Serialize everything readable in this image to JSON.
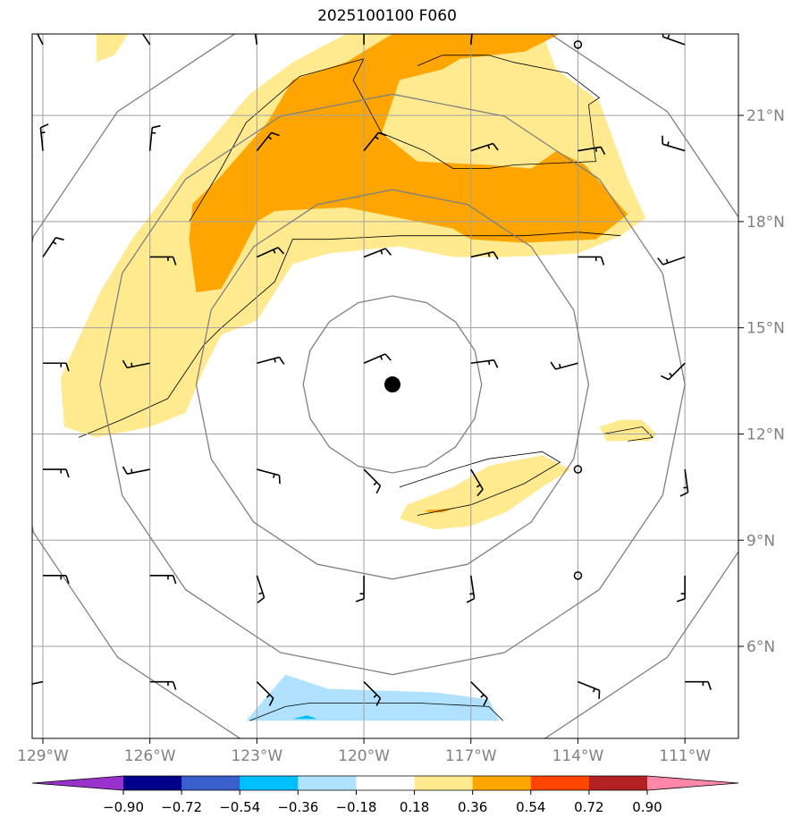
{
  "chart_data": {
    "type": "heatmap",
    "title": "2025100100 F060",
    "map": {
      "lon_range": [
        -129.3,
        -109.5
      ],
      "lat_range": [
        3.4,
        23.3
      ],
      "lon_ticks": [
        -129,
        -126,
        -123,
        -120,
        -117,
        -114,
        -111
      ],
      "lon_tick_labels": [
        "129°W",
        "126°W",
        "123°W",
        "120°W",
        "117°W",
        "114°W",
        "111°W"
      ],
      "lat_ticks": [
        6,
        9,
        12,
        15,
        18,
        21
      ],
      "lat_tick_labels": [
        "6°N",
        "9°N",
        "12°N",
        "15°N",
        "18°N",
        "21°N"
      ],
      "gridlines": true
    },
    "storm_center": {
      "lon": -119.2,
      "lat": 13.4
    },
    "range_rings_deg": [
      2.5,
      5.5,
      8.2,
      10.9
    ],
    "colorbar": {
      "levels": [
        -0.9,
        -0.72,
        -0.54,
        -0.36,
        -0.18,
        0.18,
        0.36,
        0.54,
        0.72,
        0.9
      ],
      "tick_labels": [
        "−0.90",
        "−0.72",
        "−0.54",
        "−0.36",
        "−0.18",
        "0.18",
        "0.36",
        "0.54",
        "0.72",
        "0.90"
      ],
      "colors": [
        "#9932cc",
        "#00008b",
        "#3a5fcd",
        "#00bfff",
        "#b0e2ff",
        "#ffffff",
        "#ffea8f",
        "#ffa500",
        "#ff4500",
        "#b22222",
        "#ff88aa"
      ],
      "extend": "both"
    },
    "fields": [
      {
        "level": 0.18,
        "color": "#ffea8f",
        "polygon": [
          [
            -120.5,
            23.3
          ],
          [
            -115,
            23.3
          ],
          [
            -114.6,
            22.3
          ],
          [
            -113.4,
            21.4
          ],
          [
            -112.6,
            19.2
          ],
          [
            -112.1,
            18.1
          ],
          [
            -112.8,
            17.6
          ],
          [
            -114,
            17.1
          ],
          [
            -116,
            17
          ],
          [
            -117.5,
            17
          ],
          [
            -119,
            17.3
          ],
          [
            -121,
            17.1
          ],
          [
            -122,
            16.8
          ],
          [
            -122.5,
            16
          ],
          [
            -123,
            15.2
          ],
          [
            -124,
            14.8
          ],
          [
            -124.5,
            13.8
          ],
          [
            -125,
            12.6
          ],
          [
            -126,
            12.2
          ],
          [
            -127.5,
            11.9
          ],
          [
            -128.4,
            12.2
          ],
          [
            -128.5,
            13.6
          ],
          [
            -127.4,
            16
          ],
          [
            -126.5,
            17.5
          ],
          [
            -125,
            19.5
          ],
          [
            -123.2,
            21.6
          ],
          [
            -122,
            22.5
          ]
        ]
      },
      {
        "level": 0.18,
        "color": "#ffea8f",
        "polygon": [
          [
            -127.5,
            23.3
          ],
          [
            -126.6,
            23.3
          ],
          [
            -127,
            22.7
          ],
          [
            -127.5,
            22.5
          ]
        ]
      },
      {
        "level": 0.36,
        "color": "#ffa500",
        "polygon": [
          [
            -119.2,
            23.3
          ],
          [
            -114.5,
            23.3
          ],
          [
            -115.5,
            22.8
          ],
          [
            -117.3,
            22.6
          ],
          [
            -117.8,
            22.3
          ],
          [
            -119,
            22
          ],
          [
            -119.5,
            20.5
          ],
          [
            -118.5,
            19.7
          ],
          [
            -116.5,
            19.6
          ],
          [
            -115.3,
            19.5
          ],
          [
            -114.6,
            20
          ],
          [
            -113.8,
            19.6
          ],
          [
            -113.2,
            18.9
          ],
          [
            -112.6,
            18.2
          ],
          [
            -113.5,
            17.5
          ],
          [
            -115.5,
            17.4
          ],
          [
            -117,
            17.5
          ],
          [
            -117.5,
            17.8
          ],
          [
            -119,
            18.1
          ],
          [
            -120.5,
            18.4
          ],
          [
            -122.5,
            18.3
          ],
          [
            -123,
            18
          ],
          [
            -123.5,
            17
          ],
          [
            -124,
            16.1
          ],
          [
            -124.7,
            16
          ],
          [
            -124.9,
            17.5
          ],
          [
            -124.8,
            18.5
          ],
          [
            -124,
            19.3
          ],
          [
            -122.7,
            20.8
          ],
          [
            -122,
            22
          ],
          [
            -120.5,
            22.5
          ]
        ]
      },
      {
        "level": 0.18,
        "color": "#ffea8f",
        "polygon": [
          [
            -118.8,
            10
          ],
          [
            -117.5,
            10.5
          ],
          [
            -116.5,
            11.1
          ],
          [
            -115,
            11.4
          ],
          [
            -114.2,
            11
          ],
          [
            -115,
            10.5
          ],
          [
            -116,
            9.8
          ],
          [
            -117,
            9.4
          ],
          [
            -118,
            9.3
          ],
          [
            -119,
            9.6
          ]
        ]
      },
      {
        "level": 0.36,
        "color": "#ffa500",
        "polygon": [
          [
            -118.2,
            9.85
          ],
          [
            -117.5,
            9.9
          ],
          [
            -117.8,
            9.78
          ],
          [
            -118.3,
            9.8
          ]
        ]
      },
      {
        "level": 0.18,
        "color": "#ffea8f",
        "polygon": [
          [
            -113.2,
            11.8
          ],
          [
            -112,
            11.8
          ],
          [
            -111.8,
            12
          ],
          [
            -112.2,
            12.4
          ],
          [
            -112.8,
            12.4
          ],
          [
            -113.4,
            12.2
          ]
        ]
      },
      {
        "level": -0.18,
        "color": "#b0e2ff",
        "polygon": [
          [
            -123.3,
            3.9
          ],
          [
            -116.2,
            3.9
          ],
          [
            -116.5,
            4.5
          ],
          [
            -118,
            4.7
          ],
          [
            -121,
            4.8
          ],
          [
            -122.2,
            5.2
          ]
        ]
      },
      {
        "level": -0.36,
        "color": "#00bfff",
        "polygon": [
          [
            -122,
            3.95
          ],
          [
            -121.3,
            3.95
          ],
          [
            -121.6,
            4.05
          ]
        ]
      }
    ],
    "contours": [
      [
        [
          -116.2,
          23.3
        ],
        [
          -116.5,
          23.4
        ]
      ],
      [
        [
          -118.5,
          22.4
        ],
        [
          -117.8,
          22.7
        ],
        [
          -116.5,
          22.7
        ],
        [
          -115.8,
          22.5
        ],
        [
          -114.3,
          22.2
        ],
        [
          -113.4,
          21.5
        ],
        [
          -113.7,
          21.3
        ],
        [
          -113.5,
          19.7
        ],
        [
          -115.8,
          19.6
        ],
        [
          -116.5,
          19.5
        ],
        [
          -117.5,
          19.5
        ],
        [
          -118.3,
          20
        ],
        [
          -119.5,
          20.5
        ],
        [
          -120.3,
          22
        ],
        [
          -120,
          22.6
        ],
        [
          -121.8,
          22.1
        ],
        [
          -123.3,
          20.8
        ],
        [
          -124,
          19.5
        ],
        [
          -124.9,
          18
        ]
      ],
      [
        [
          -128,
          11.9
        ],
        [
          -126.8,
          12.4
        ],
        [
          -125.5,
          13
        ],
        [
          -124.5,
          14.5
        ],
        [
          -124,
          15
        ],
        [
          -122.5,
          16.3
        ],
        [
          -122,
          17.5
        ],
        [
          -121,
          17.5
        ],
        [
          -119,
          17.6
        ],
        [
          -117,
          17.6
        ],
        [
          -115.5,
          17.6
        ],
        [
          -114,
          17.7
        ],
        [
          -112.8,
          17.6
        ]
      ],
      [
        [
          -119,
          10.5
        ],
        [
          -117.5,
          11
        ],
        [
          -116.5,
          11.3
        ],
        [
          -115,
          11.5
        ],
        [
          -114.5,
          11.2
        ],
        [
          -115.5,
          10.6
        ],
        [
          -117,
          10
        ],
        [
          -118.5,
          9.7
        ]
      ],
      [
        [
          -113.3,
          12
        ],
        [
          -112.2,
          12.2
        ],
        [
          -111.9,
          11.9
        ],
        [
          -112.6,
          11.8
        ]
      ],
      [
        [
          -123.2,
          3.9
        ],
        [
          -122.2,
          4.3
        ],
        [
          -121.5,
          4.4
        ],
        [
          -118.5,
          4.4
        ],
        [
          -116.5,
          4.3
        ],
        [
          -116.1,
          3.9
        ]
      ]
    ],
    "wind_barbs": [
      {
        "lon": -129,
        "lat": 23,
        "u": -1,
        "v": 2
      },
      {
        "lon": -126,
        "lat": 23,
        "u": -1,
        "v": 1.5
      },
      {
        "lon": -123,
        "lat": 23,
        "u": -0.3,
        "v": 2
      },
      {
        "lon": -120,
        "lat": 23,
        "u": 0,
        "v": 2
      },
      {
        "lon": -117,
        "lat": 23,
        "u": 0.2,
        "v": 2
      },
      {
        "lon": -114,
        "lat": 23,
        "calm": true
      },
      {
        "lon": -111,
        "lat": 23,
        "u": -2,
        "v": 0.7
      },
      {
        "lon": -129,
        "lat": 20,
        "u": -0.2,
        "v": 2
      },
      {
        "lon": -126,
        "lat": 20,
        "u": 0.2,
        "v": 2
      },
      {
        "lon": -123,
        "lat": 20,
        "u": 1.2,
        "v": 1.5
      },
      {
        "lon": -120,
        "lat": 20,
        "u": 1.2,
        "v": 1.5
      },
      {
        "lon": -117,
        "lat": 20,
        "u": 1.8,
        "v": 0.6
      },
      {
        "lon": -114,
        "lat": 20,
        "u": 1.8,
        "v": 0.3
      },
      {
        "lon": -111,
        "lat": 20,
        "u": -2,
        "v": 0.6
      },
      {
        "lon": -129,
        "lat": 17,
        "u": 1,
        "v": 1.5
      },
      {
        "lon": -126,
        "lat": 17,
        "u": 1.5,
        "v": 0
      },
      {
        "lon": -123,
        "lat": 17,
        "u": 1.8,
        "v": 0.8
      },
      {
        "lon": -120,
        "lat": 17,
        "u": 1.8,
        "v": 0.7
      },
      {
        "lon": -117,
        "lat": 17,
        "u": 1.8,
        "v": 0.4
      },
      {
        "lon": -114,
        "lat": 17,
        "u": 1.6,
        "v": 0
      },
      {
        "lon": -111,
        "lat": 17,
        "u": -2,
        "v": -0.7
      },
      {
        "lon": -129,
        "lat": 14,
        "u": 1.5,
        "v": 0
      },
      {
        "lon": -126,
        "lat": 14,
        "u": -1.5,
        "v": -0.3
      },
      {
        "lon": -123,
        "lat": 14,
        "u": 1.5,
        "v": 0.4
      },
      {
        "lon": -120,
        "lat": 14,
        "u": 1.4,
        "v": 0.6
      },
      {
        "lon": -117,
        "lat": 14,
        "u": 1.5,
        "v": 0.2
      },
      {
        "lon": -114,
        "lat": 14,
        "u": -1.5,
        "v": -0.4
      },
      {
        "lon": -111,
        "lat": 14,
        "u": -1,
        "v": -1
      },
      {
        "lon": -129,
        "lat": 11,
        "u": 1.5,
        "v": 0
      },
      {
        "lon": -126,
        "lat": 11,
        "u": -1.5,
        "v": -0.3
      },
      {
        "lon": -123,
        "lat": 11,
        "u": 1.5,
        "v": -0.4
      },
      {
        "lon": -120,
        "lat": 11,
        "u": 1,
        "v": -1
      },
      {
        "lon": -117,
        "lat": 11,
        "u": 0.6,
        "v": -1
      },
      {
        "lon": -114,
        "lat": 11,
        "calm": true
      },
      {
        "lon": -111,
        "lat": 11,
        "u": 0.2,
        "v": -1.5
      },
      {
        "lon": -129,
        "lat": 8,
        "u": 1.5,
        "v": 0
      },
      {
        "lon": -126,
        "lat": 8,
        "u": 1.5,
        "v": 0
      },
      {
        "lon": -123,
        "lat": 8,
        "u": 0.5,
        "v": -1.5
      },
      {
        "lon": -120,
        "lat": 8,
        "u": 0,
        "v": -2
      },
      {
        "lon": -117,
        "lat": 8,
        "u": 0.3,
        "v": -2
      },
      {
        "lon": -114,
        "lat": 8,
        "calm": true
      },
      {
        "lon": -111,
        "lat": 8,
        "u": 0,
        "v": -2
      },
      {
        "lon": -129,
        "lat": 5,
        "u": -1.5,
        "v": -0.3
      },
      {
        "lon": -126,
        "lat": 5,
        "u": 1.5,
        "v": 0
      },
      {
        "lon": -123,
        "lat": 5,
        "u": 1,
        "v": -1
      },
      {
        "lon": -120,
        "lat": 5,
        "u": 1,
        "v": -1
      },
      {
        "lon": -117,
        "lat": 5,
        "u": 1,
        "v": -1
      },
      {
        "lon": -114,
        "lat": 5,
        "u": 1.5,
        "v": -0.6
      },
      {
        "lon": -111,
        "lat": 5,
        "u": 1.5,
        "v": 0
      }
    ]
  }
}
